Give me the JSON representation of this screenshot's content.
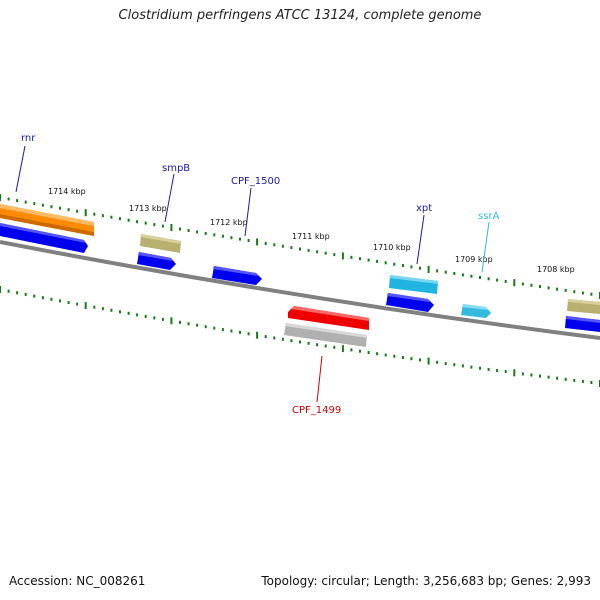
{
  "title": "Clostridium perfringens ATCC 13124, complete genome",
  "footer": {
    "accession": "Accession: NC_008261",
    "summary": "Topology: circular; Length: 3,256,683 bp; Genes: 2,993"
  },
  "kbp_labels": [
    "1714 kbp",
    "1713 kbp",
    "1712 kbp",
    "1711 kbp",
    "1710 kbp",
    "1709 kbp",
    "1708 kbp"
  ],
  "gene_labels": {
    "rnr": "rnr",
    "smpB": "smpB",
    "cpf1500": "CPF_1500",
    "xpt": "xpt",
    "ssrA": "ssrA",
    "cpf1499": "CPF_1499"
  },
  "colors": {
    "backbone": "#7a7a7a",
    "tick": "#1a7a1a",
    "cds": "#0000ee",
    "rnr_feature": "#ff8c00",
    "misc_feature": "#b8b070",
    "cpf1499_feature": "#ee0000",
    "cpf1499_track": "#b0b0b0",
    "xpt_feature": "#22b4e0",
    "ssrA_feature": "#33bbdd",
    "label_blue": "#1a1aa8",
    "label_cyan": "#33bbdd",
    "label_red": "#cc0000"
  }
}
